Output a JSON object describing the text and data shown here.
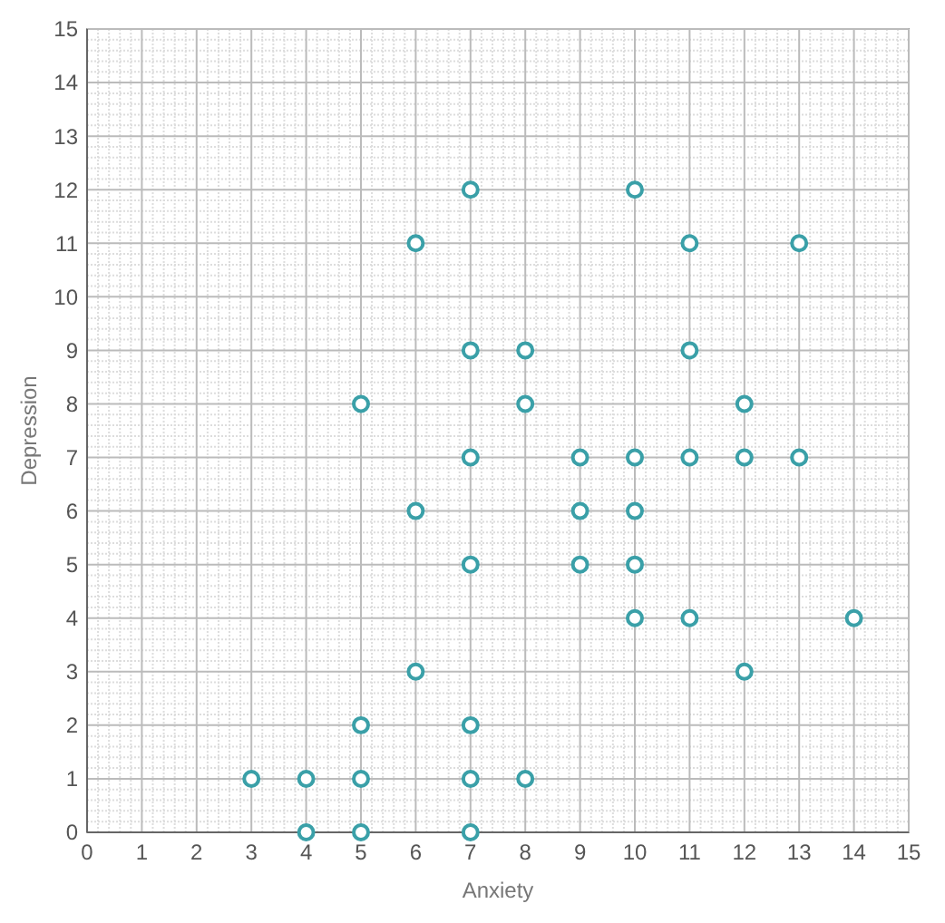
{
  "chart_data": {
    "type": "scatter",
    "xlabel": "Anxiety",
    "ylabel": "Depression",
    "x": [
      7,
      10,
      6,
      11,
      13,
      7,
      8,
      11,
      5,
      8,
      12,
      7,
      9,
      10,
      11,
      12,
      13,
      6,
      9,
      10,
      7,
      9,
      10,
      10,
      11,
      14,
      6,
      12,
      5,
      7,
      3,
      4,
      5,
      7,
      8,
      4,
      5,
      7
    ],
    "values": [
      12,
      12,
      11,
      11,
      11,
      9,
      9,
      9,
      8,
      8,
      8,
      7,
      7,
      7,
      7,
      7,
      7,
      6,
      6,
      6,
      5,
      5,
      5,
      4,
      4,
      4,
      3,
      3,
      2,
      2,
      1,
      1,
      1,
      1,
      1,
      0,
      0,
      0
    ],
    "color": "#3aa0a8",
    "marker": "circle",
    "grid": true,
    "xlim": [
      0,
      15
    ],
    "ylim": [
      0,
      15
    ],
    "xticks": [
      0,
      1,
      2,
      3,
      4,
      5,
      6,
      7,
      8,
      9,
      10,
      11,
      12,
      13,
      14,
      15
    ],
    "yticks": [
      0,
      1,
      2,
      3,
      4,
      5,
      6,
      7,
      8,
      9,
      10,
      11,
      12,
      13,
      14,
      15
    ]
  }
}
